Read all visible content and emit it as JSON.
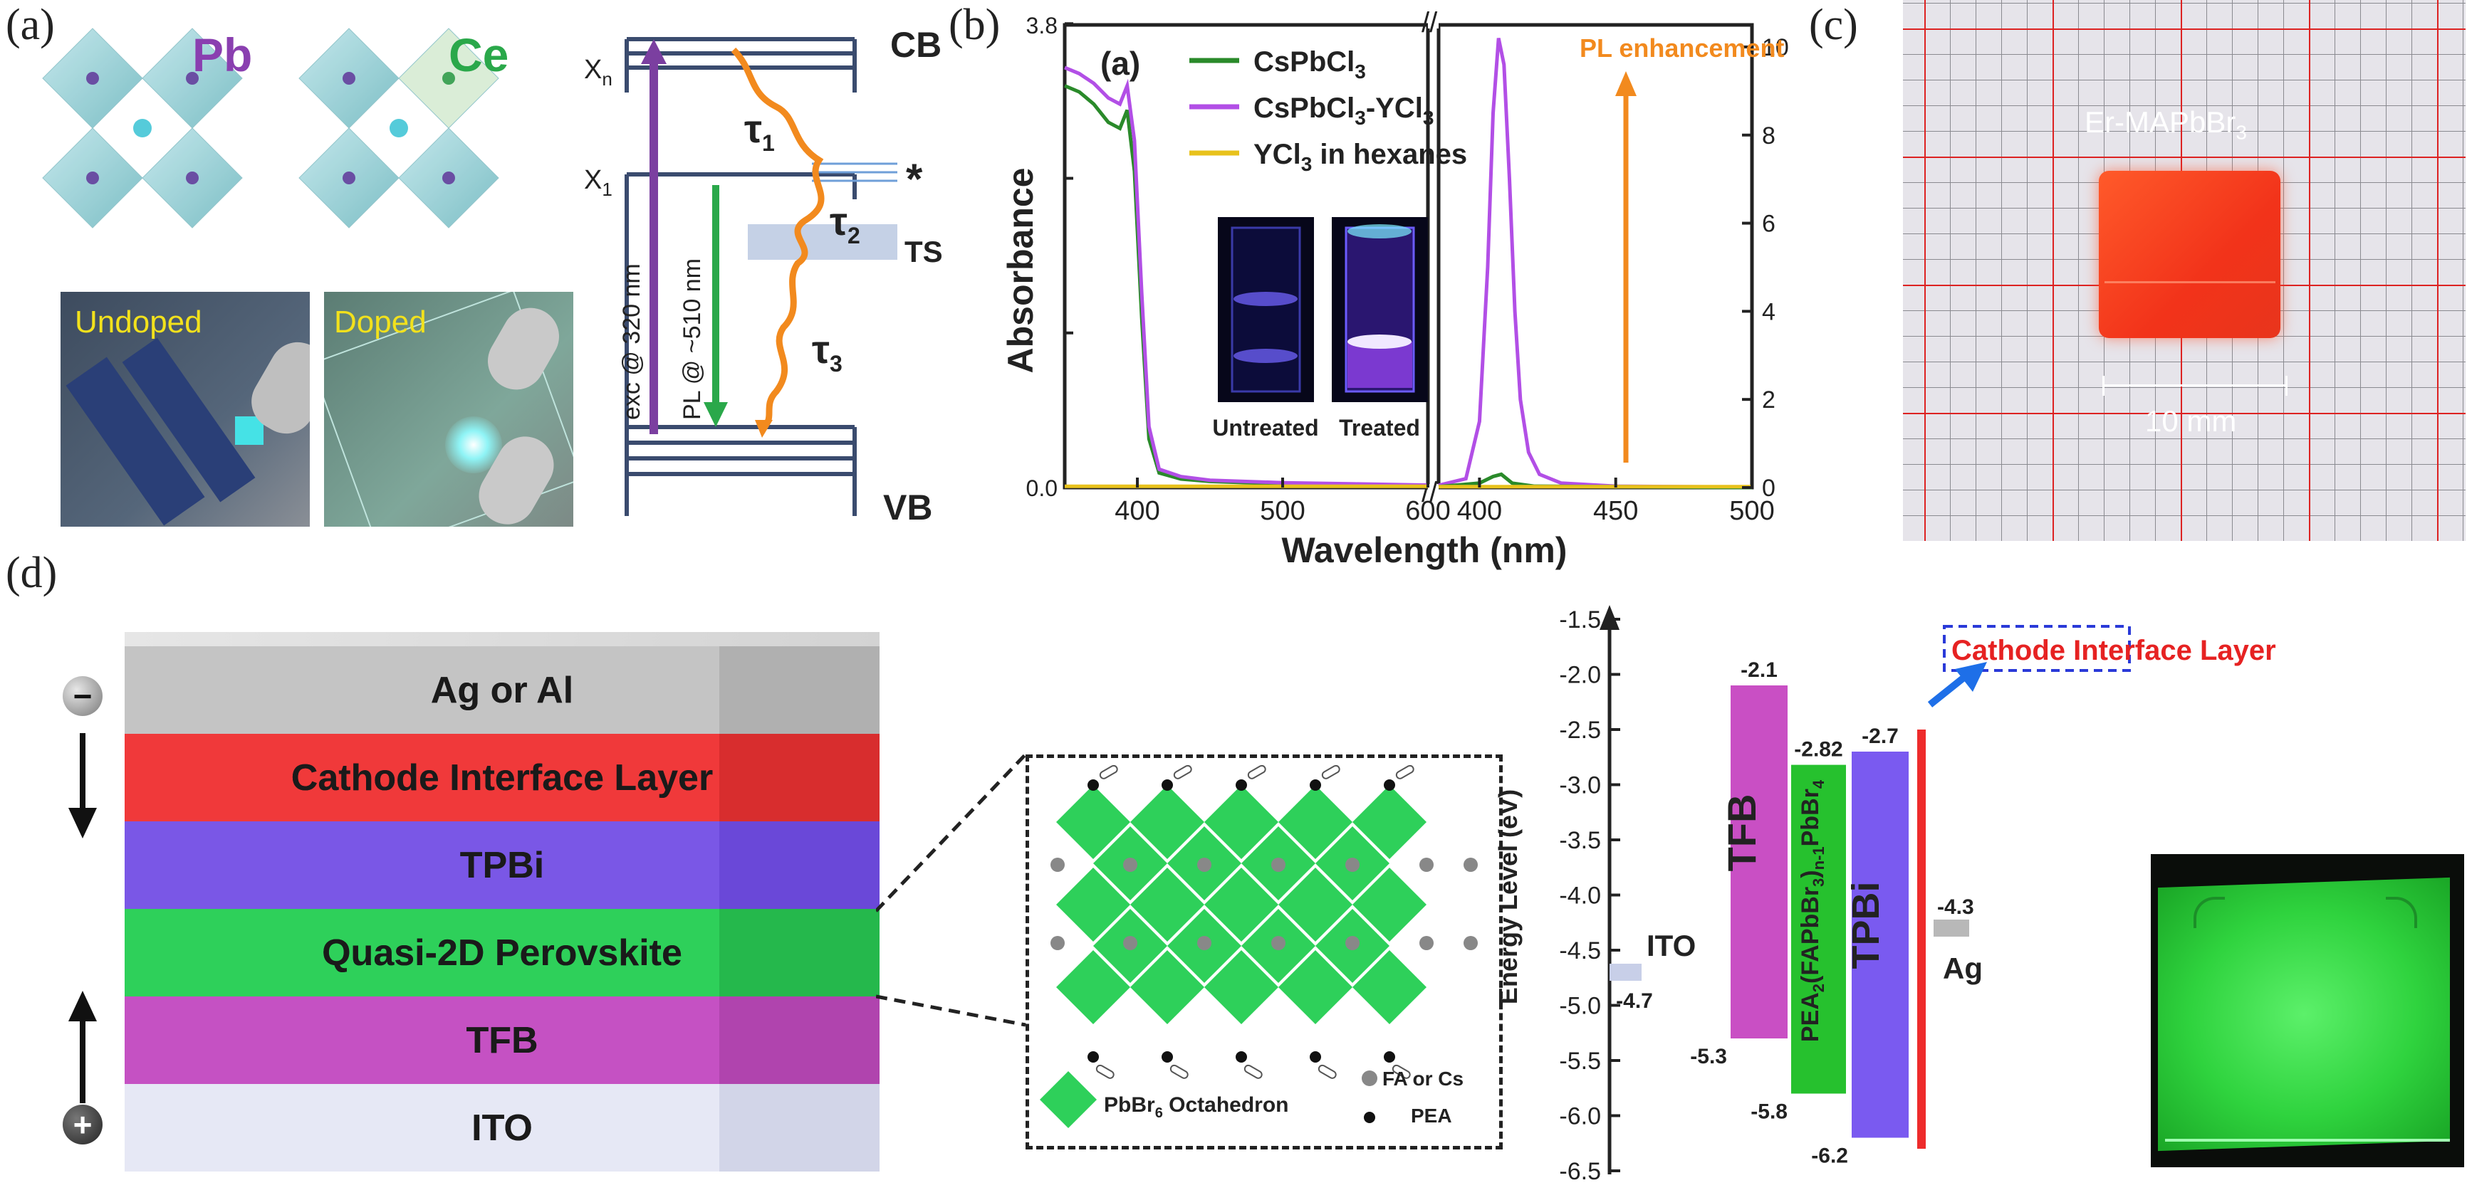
{
  "panel_labels": [
    "(a)",
    "(b)",
    "(c)",
    "(d)"
  ],
  "panel_a": {
    "structure_labels": [
      "Pb",
      "Ce"
    ],
    "photo_labels": [
      "Undoped",
      "Doped"
    ],
    "levels": {
      "cb": "CB",
      "vb": "VB",
      "xn": "X",
      "xn_sub": "n",
      "x1": "X",
      "x1_sub": "1",
      "star": "*",
      "ts": "TS"
    },
    "taus": [
      {
        "t": "τ",
        "s": "1"
      },
      {
        "t": "τ",
        "s": "2"
      },
      {
        "t": "τ",
        "s": "3"
      }
    ],
    "exc_label": "exc @ 320 nm",
    "pl_label": "PL @ ~510 nm",
    "colors": {
      "exc": "#7b3fa0",
      "pl": "#2aa84a",
      "decay": "#f28a1e"
    }
  },
  "panel_b": {
    "inner_label": "(a)",
    "legend": [
      {
        "name": "CsPbCl",
        "sub": "3",
        "tail": "",
        "color": "#2a8a2a"
      },
      {
        "name": "CsPbCl",
        "sub": "3",
        "tail": "-YCl",
        "sub2": "3",
        "color": "#b24fe6"
      },
      {
        "name": "YCl",
        "sub": "3",
        "tail": " in hexanes",
        "color": "#e8c21c"
      }
    ],
    "annotation": "PL enhancement",
    "inset_labels": [
      "Untreated",
      "Treated"
    ]
  },
  "chart_data": [
    {
      "type": "line",
      "title": "Absorbance",
      "xlabel": "Wavelength (nm)",
      "ylabel": "Absorbance",
      "xlim": [
        350,
        600
      ],
      "ylim": [
        0,
        3.8
      ],
      "yticks": [
        "0.0",
        "3.8"
      ],
      "xticks": [
        400,
        500,
        600
      ],
      "series": [
        {
          "name": "CsPbCl3",
          "color": "#2a8a2a",
          "x": [
            350,
            360,
            370,
            380,
            388,
            393,
            398,
            403,
            408,
            415,
            430,
            450,
            500,
            550,
            600
          ],
          "y": [
            3.3,
            3.25,
            3.15,
            3.0,
            2.95,
            3.1,
            2.6,
            1.4,
            0.4,
            0.12,
            0.07,
            0.05,
            0.03,
            0.02,
            0.02
          ]
        },
        {
          "name": "CsPbCl3-YCl3",
          "color": "#b24fe6",
          "x": [
            350,
            360,
            370,
            380,
            388,
            393,
            398,
            403,
            408,
            415,
            430,
            450,
            500,
            550,
            600
          ],
          "y": [
            3.45,
            3.4,
            3.32,
            3.2,
            3.15,
            3.3,
            2.85,
            1.6,
            0.5,
            0.15,
            0.09,
            0.06,
            0.04,
            0.03,
            0.02
          ]
        },
        {
          "name": "YCl3 in hexanes",
          "color": "#e8c21c",
          "x": [
            350,
            600
          ],
          "y": [
            0.01,
            0.01
          ]
        }
      ]
    },
    {
      "type": "line",
      "title": "PL",
      "xlabel": "Wavelength (nm)",
      "ylabel": "",
      "xlim": [
        385,
        500
      ],
      "ylim": [
        0,
        10.5
      ],
      "yticks": [
        0,
        2,
        4,
        6,
        8,
        10
      ],
      "xticks": [
        400,
        450,
        500
      ],
      "series": [
        {
          "name": "CsPbCl3-YCl3",
          "color": "#b24fe6",
          "x": [
            385,
            395,
            400,
            403,
            405,
            407,
            409,
            411,
            413,
            415,
            418,
            422,
            430,
            450,
            500
          ],
          "y": [
            0.05,
            0.2,
            1.5,
            5.0,
            8.5,
            10.2,
            9.6,
            7.0,
            4.0,
            2.0,
            0.8,
            0.3,
            0.1,
            0.03,
            0.01
          ]
        },
        {
          "name": "CsPbCl3",
          "color": "#2a8a2a",
          "x": [
            385,
            400,
            405,
            408,
            412,
            420,
            500
          ],
          "y": [
            0.02,
            0.1,
            0.25,
            0.3,
            0.1,
            0.03,
            0.0
          ]
        },
        {
          "name": "YCl3 in hexanes",
          "color": "#e8c21c",
          "x": [
            385,
            500
          ],
          "y": [
            0.02,
            0.02
          ]
        }
      ]
    },
    {
      "type": "bar",
      "title": "Energy Level (eV)",
      "ylabel": "Energy Level (eV)",
      "ylim": [
        -6.5,
        -1.5
      ],
      "yticks": [
        "-1.5",
        "-2.0",
        "-2.5",
        "-3.0",
        "-3.5",
        "-4.0",
        "-4.5",
        "-5.0",
        "-5.5",
        "-6.0",
        "-6.5"
      ],
      "bars": [
        {
          "name": "ITO",
          "top": -4.7,
          "bottom": -4.7,
          "color": "#c8cfe8",
          "top_label": "",
          "bottom_label": "-4.7"
        },
        {
          "name": "TFB",
          "top": -2.1,
          "bottom": -5.3,
          "color": "#c94fc4",
          "top_label": "-2.1",
          "bottom_label": "-5.3"
        },
        {
          "name": "PEA2(FAPbBr3)n-1PbBr4",
          "top": -2.82,
          "bottom": -5.8,
          "color": "#26c12e",
          "top_label": "-2.82",
          "bottom_label": "-5.8"
        },
        {
          "name": "TPBi",
          "top": -2.7,
          "bottom": -6.2,
          "color": "#7a5af0",
          "top_label": "-2.7",
          "bottom_label": "-6.2"
        },
        {
          "name": "Cathode Interface Layer",
          "top": -2.5,
          "bottom": -6.3,
          "color": "#ee2b2b",
          "top_label": "",
          "bottom_label": ""
        },
        {
          "name": "Ag",
          "top": -4.3,
          "bottom": -4.3,
          "color": "#b8b8b8",
          "top_label": "-4.3",
          "bottom_label": ""
        }
      ]
    }
  ],
  "panel_c": {
    "sample_label": "Er-MAPbBr",
    "sample_sub": "3",
    "scale": "10 mm"
  },
  "panel_d": {
    "layers": [
      "Ag or Al",
      "Cathode Interface Layer",
      "TPBi",
      "Quasi-2D Perovskite",
      "TFB",
      "ITO"
    ],
    "layer_colors": [
      "#c4c4c4",
      "#f0393a",
      "#7a57e6",
      "#2ed05a",
      "#c551c3",
      "#e6e8f5"
    ],
    "minus": "−",
    "plus": "+",
    "inset_legend": [
      "PbBr",
      "6",
      " Octahedron",
      "FA or Cs",
      "PEA"
    ],
    "energy_labels": {
      "ito": "ITO",
      "tfb": "TFB",
      "pea_main": "PEA",
      "pea_sub1": "2",
      "pea_mid": "(FAPbBr",
      "pea_sub2": "3",
      "pea_mid2": ")",
      "pea_sub3": "n-1",
      "pea_end": "PbBr",
      "pea_sub4": "4",
      "tpbi": "TPBi",
      "ag": "Ag",
      "callout": "Cathode Interface Layer"
    }
  }
}
